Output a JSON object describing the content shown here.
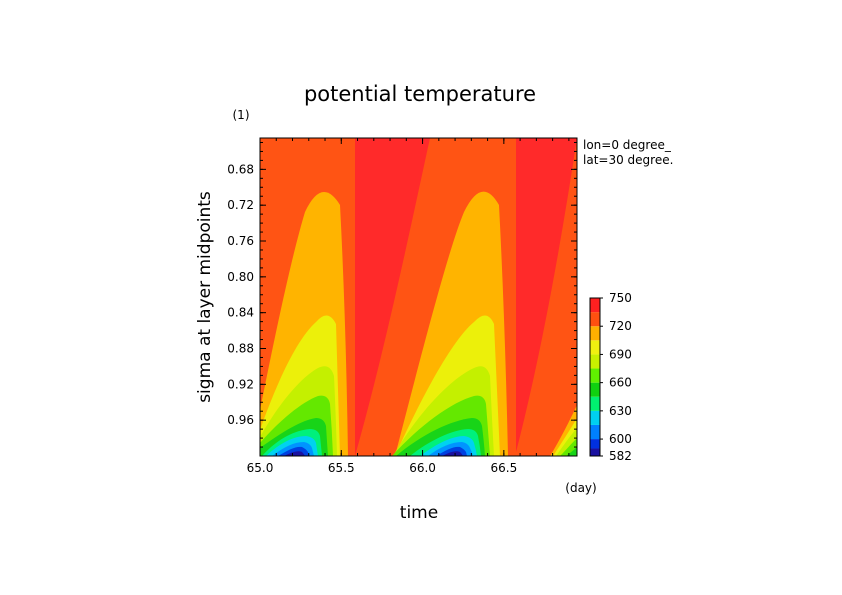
{
  "chart_data": {
    "type": "contour",
    "title": "potential temperature",
    "y_unit": "(1)",
    "x_unit": "(day)",
    "xlabel": "time",
    "ylabel": "sigma at layer midpoints",
    "xlim": [
      65.0,
      66.95
    ],
    "ylim": [
      1.0,
      0.645
    ],
    "y_axis_inverted": true,
    "x_ticks": [
      "65.0",
      "65.5",
      "66.0",
      "66.5"
    ],
    "x_tick_values": [
      65.0,
      65.5,
      66.0,
      66.5
    ],
    "y_ticks": [
      "0.68",
      "0.72",
      "0.76",
      "0.80",
      "0.84",
      "0.88",
      "0.92",
      "0.96"
    ],
    "y_tick_values": [
      0.68,
      0.72,
      0.76,
      0.8,
      0.84,
      0.88,
      0.92,
      0.96
    ],
    "annotations": [
      "lon=0 degree_",
      "lat=30 degree."
    ],
    "colorbar": {
      "labels": [
        "750",
        "720",
        "690",
        "660",
        "630",
        "600",
        "582"
      ],
      "levels": [
        582,
        590,
        600,
        615,
        630,
        645,
        660,
        675,
        690,
        705,
        720,
        735,
        750
      ],
      "colors": [
        "#1a10a0",
        "#0030e0",
        "#0080ff",
        "#00d0f0",
        "#00f070",
        "#10d010",
        "#60f000",
        "#c8f000",
        "#f0f010",
        "#ffb000",
        "#ff5010",
        "#ff2020"
      ]
    },
    "colors": {
      "c_high": "#ff2a2a",
      "c_720": "#ff5414",
      "c_705": "#ffb400",
      "c_690": "#ecf00a",
      "c_675": "#c4f000",
      "c_660": "#64e800",
      "c_645": "#18d418",
      "c_630": "#00f07c",
      "c_615": "#00d2f0",
      "c_600": "#0094ff",
      "c_590": "#0040e0",
      "c_582": "#1a10a0"
    }
  }
}
